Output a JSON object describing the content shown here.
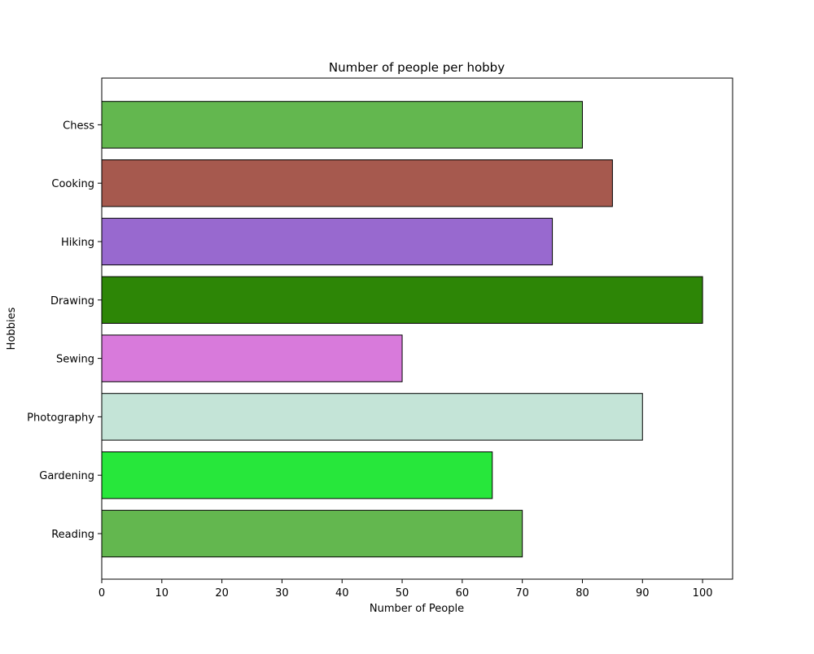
{
  "chart_data": {
    "type": "bar",
    "orientation": "horizontal",
    "title": "Number of people per hobby",
    "xlabel": "Number of People",
    "ylabel": "Hobbies",
    "categories": [
      "Reading",
      "Gardening",
      "Photography",
      "Sewing",
      "Drawing",
      "Hiking",
      "Cooking",
      "Chess"
    ],
    "values": [
      70,
      65,
      90,
      50,
      100,
      75,
      85,
      80
    ],
    "colors": [
      "#63b74f",
      "#27e73b",
      "#c4e4d7",
      "#d87adb",
      "#2d8606",
      "#9869cf",
      "#a6594e",
      "#63b74f"
    ],
    "xlim": [
      0,
      105
    ],
    "xticks": [
      0,
      10,
      20,
      30,
      40,
      50,
      60,
      70,
      80,
      90,
      100
    ],
    "grid": false,
    "legend": false
  }
}
